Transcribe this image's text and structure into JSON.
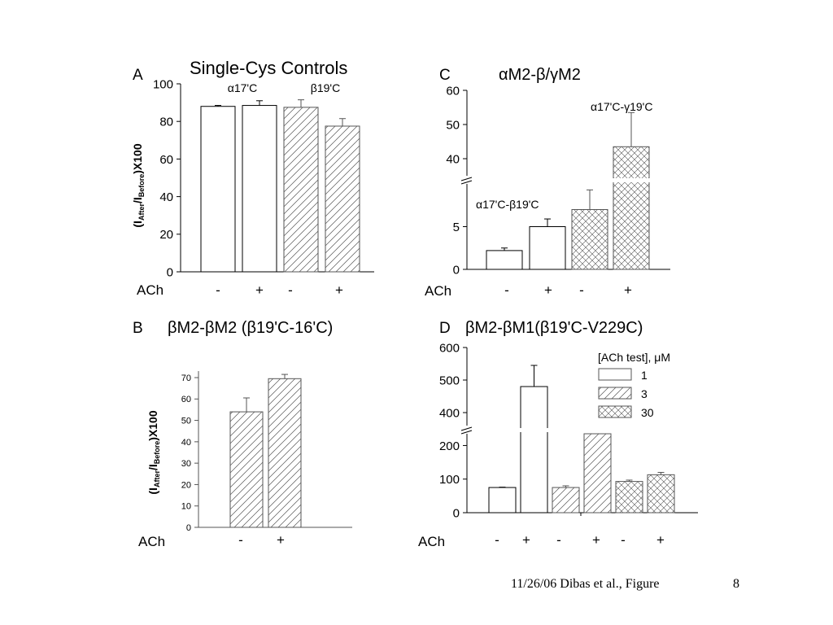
{
  "footer": {
    "citation": "11/26/06 Dibas et al., Figure",
    "page": "8"
  },
  "colors": {
    "ink": "#000000",
    "axis": "#555555",
    "background": "#ffffff"
  },
  "chart_data": [
    {
      "panel": "A",
      "type": "bar",
      "title": "Single-Cys Controls",
      "ylabel": "(I_After/I_Before)X100",
      "xlabel": "ACh",
      "ylim": [
        0,
        100
      ],
      "yticks": [
        0,
        20,
        40,
        60,
        80,
        100
      ],
      "categories": [
        "-",
        "+",
        "-",
        "+"
      ],
      "values": [
        88,
        88.5,
        87.5,
        77.5
      ],
      "errors": [
        0.5,
        2.5,
        4,
        4
      ],
      "patterns": [
        "blank",
        "blank",
        "hatch",
        "hatch"
      ],
      "group_labels": [
        {
          "text": "α17'C",
          "bars": [
            0,
            1
          ]
        },
        {
          "text": "β19'C",
          "bars": [
            2,
            3
          ]
        }
      ]
    },
    {
      "panel": "C",
      "type": "bar",
      "title": "αM2-β/γM2",
      "xlabel": "ACh",
      "broken_axis": true,
      "lower_ylim": [
        0,
        10
      ],
      "upper_ylim": [
        35,
        60
      ],
      "yticks": [
        0,
        5,
        40,
        50,
        60
      ],
      "categories": [
        "-",
        "+",
        "-",
        "+"
      ],
      "values": [
        2.2,
        5.0,
        7.0,
        43.5
      ],
      "errors": [
        0.3,
        0.9,
        2.3,
        10.0
      ],
      "patterns": [
        "blank",
        "blank",
        "crosshatch",
        "crosshatch"
      ],
      "annotations": [
        "α17'C-β19'C",
        "α17'C-γ19'C"
      ]
    },
    {
      "panel": "B",
      "type": "bar",
      "title": "βM2-βM2 (β19'C-16'C)",
      "ylabel": "(I_After/I_Before)X100",
      "xlabel": "ACh",
      "ylim": [
        0,
        70
      ],
      "yticks": [
        0,
        10,
        20,
        30,
        40,
        50,
        60,
        70
      ],
      "categories": [
        "-",
        "+"
      ],
      "values": [
        54,
        69.5
      ],
      "errors": [
        6.5,
        2
      ],
      "patterns": [
        "hatch",
        "hatch"
      ]
    },
    {
      "panel": "D",
      "type": "bar",
      "title": "βM2-βM1(β19'C-V229C)",
      "xlabel": "ACh",
      "broken_axis": true,
      "lower_ylim": [
        0,
        235
      ],
      "upper_ylim": [
        360,
        600
      ],
      "yticks": [
        0,
        100,
        200,
        400,
        500,
        600
      ],
      "categories": [
        "-",
        "+",
        "-",
        "+",
        "-",
        "+"
      ],
      "values": [
        75,
        480,
        75,
        235,
        93,
        113
      ],
      "errors": [
        1,
        65,
        5,
        0,
        4,
        7
      ],
      "patterns": [
        "blank",
        "blank",
        "hatch",
        "hatch",
        "crosshatch",
        "crosshatch"
      ],
      "legend": {
        "title": "[ACh test], μM",
        "entries": [
          {
            "label": "1",
            "pattern": "blank"
          },
          {
            "label": "3",
            "pattern": "hatch"
          },
          {
            "label": "30",
            "pattern": "crosshatch"
          }
        ]
      }
    }
  ]
}
